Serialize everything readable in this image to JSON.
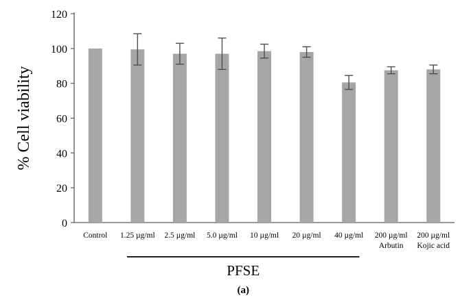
{
  "chart_data": {
    "type": "bar",
    "title": "",
    "xlabel": "",
    "ylabel": "% Cell viability",
    "ylim": [
      0,
      120
    ],
    "yticks": [
      0,
      20,
      40,
      60,
      80,
      100,
      120
    ],
    "grid": false,
    "categories": [
      [
        "Control"
      ],
      [
        "1.25 µg/ml"
      ],
      [
        "2.5 µg/ml"
      ],
      [
        "5.0 µg/ml"
      ],
      [
        "10 µg/ml"
      ],
      [
        "20 µg/ml"
      ],
      [
        "40 µg/ml"
      ],
      [
        "200 µg/ml",
        "Arbutin"
      ],
      [
        "200 µg/ml",
        "Kojic acid"
      ]
    ],
    "series": [
      {
        "values": [
          100,
          99.5,
          97,
          97,
          98.5,
          98,
          80.5,
          87.5,
          88
        ],
        "errors": [
          0,
          9,
          6,
          9,
          4,
          3,
          4,
          2,
          2.5
        ]
      }
    ],
    "bar_color": "#a6a6a6",
    "error_color": "#4d4d4d",
    "axis_color": "#595959",
    "group_label": "PFSE",
    "group_categories": [
      "1.25 µg/ml",
      "40 µg/ml"
    ],
    "panel_label": "(a)"
  }
}
